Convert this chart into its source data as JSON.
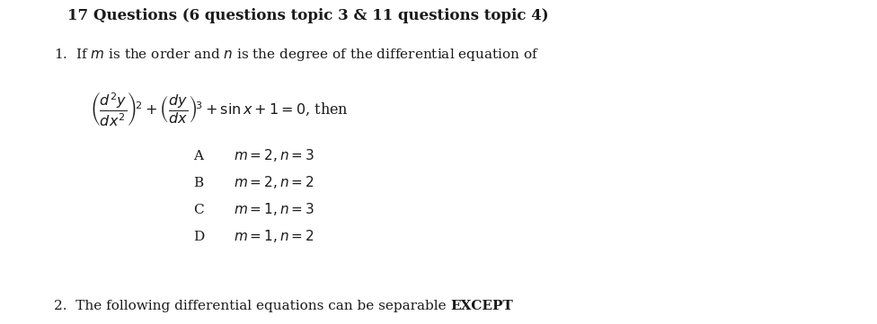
{
  "background_color": "#ffffff",
  "title": "17 Questions (6 questions topic 3 & 11 questions topic 4)",
  "title_fontsize": 12.0,
  "title_fontweight": "bold",
  "q1_intro_fontsize": 11.0,
  "equation_fontsize": 11.5,
  "options_fontsize": 11.0,
  "q2_fontsize": 11.0,
  "options": [
    [
      "A",
      "$m=2,n=3$"
    ],
    [
      "B",
      "$m=2,n=2$"
    ],
    [
      "C",
      "$m=1,n=3$"
    ],
    [
      "D",
      "$m=1,n=2$"
    ]
  ],
  "text_color": "#1a1a1a"
}
